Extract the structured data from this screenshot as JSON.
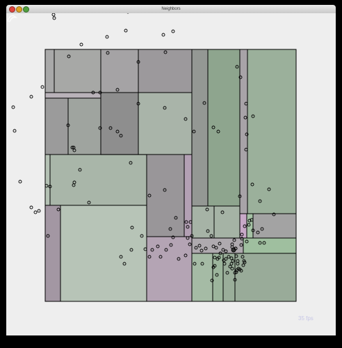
{
  "window": {
    "title": "Neighbors"
  },
  "overlay": {
    "fps_label": "35 fps"
  },
  "colors": {
    "canvas_bg": "#eeeeee",
    "stroke": "#000000",
    "rect_fills": [
      "#a9a9a9",
      "#a7a8a6",
      "#a5a3a5",
      "#9c999c",
      "#9b9b9b",
      "#9fa49f",
      "#8e8e8e",
      "#a9b4a9",
      "#b4c1b4",
      "#a9b6a9",
      "#999699",
      "#b3a0b4",
      "#949894",
      "#8ea58e",
      "#a8a3a8",
      "#9bb09b",
      "#a397a3",
      "#b7c4b7",
      "#b4a4b4",
      "#a6b3a6",
      "#a5b3a5",
      "#c8a9c8",
      "#a5c2a5",
      "#a3a3a3",
      "#afaaaf",
      "#9fbf9f",
      "#a5bba5",
      "#9cb59c",
      "#9aae9a",
      "#99ab99",
      "#b9b2b9",
      "#a9aaa9"
    ]
  },
  "partition": {
    "description_hidden": "",
    "cell_count": 32,
    "point_count": 150
  }
}
